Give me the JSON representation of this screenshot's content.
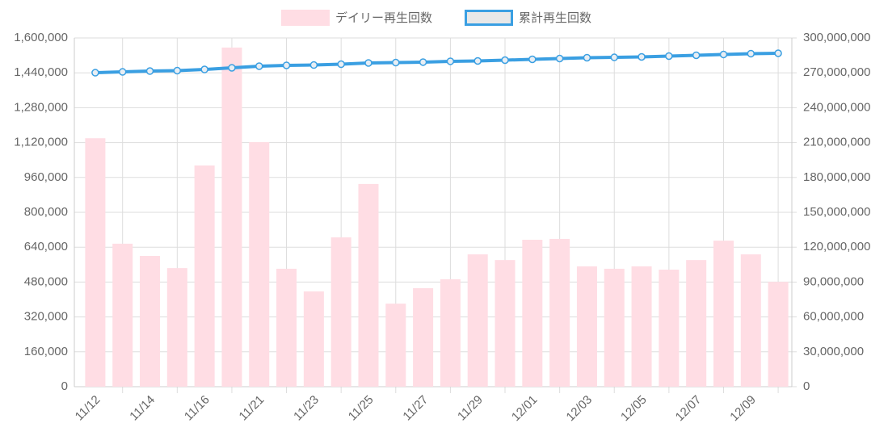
{
  "chart_data": {
    "type": "bar-line",
    "categories": [
      "11/12",
      null,
      "11/14",
      null,
      "11/16",
      null,
      "11/21",
      null,
      "11/23",
      null,
      "11/25",
      null,
      "11/27",
      null,
      "11/29",
      null,
      "12/01",
      null,
      "12/03",
      null,
      "12/05",
      null,
      "12/07",
      null,
      "12/09",
      null
    ],
    "series": [
      {
        "name": "デイリー再生回数",
        "color": "#ffdde4",
        "type": "bar",
        "axis": "y",
        "values": [
          1140000,
          656000,
          600000,
          544000,
          1015000,
          1556000,
          1122000,
          541000,
          437000,
          685000,
          930000,
          381000,
          452000,
          493000,
          607000,
          581000,
          674000,
          678000,
          552000,
          541000,
          552000,
          537000,
          581000,
          670000,
          607000,
          481000
        ]
      },
      {
        "name": "累計再生回数",
        "color": "#3a9fe2",
        "type": "line",
        "axis": "y2",
        "values": [
          270100000,
          270800000,
          271500000,
          271900000,
          272900000,
          274300000,
          275700000,
          276400000,
          276700000,
          277400000,
          278500000,
          278800000,
          279200000,
          279900000,
          280200000,
          280900000,
          281600000,
          282300000,
          283000000,
          283300000,
          283700000,
          284400000,
          285100000,
          285800000,
          286500000,
          286800000
        ]
      }
    ],
    "ylim": [
      0,
      1600000
    ],
    "yticks": [
      0,
      {
        "value": 160000,
        "label": "160,000"
      },
      {
        "value": 320000,
        "label": "320,000"
      },
      {
        "value": 480000,
        "label": "480,000"
      },
      {
        "value": 640000,
        "label": "640,000"
      },
      {
        "value": 800000,
        "label": "800,000"
      },
      {
        "value": 960000,
        "label": "960,000"
      },
      {
        "value": 1120000,
        "label": "1,120,000"
      },
      {
        "value": 1280000,
        "label": "1,280,000"
      },
      {
        "value": 1440000,
        "label": "1,440,000"
      },
      {
        "value": 1600000,
        "label": "1,600,000"
      }
    ],
    "y2lim": [
      0,
      300000000
    ],
    "y2ticks": [
      0,
      {
        "value": 30000000,
        "label": "30,000,000"
      },
      {
        "value": 60000000,
        "label": "60,000,000"
      },
      {
        "value": 90000000,
        "label": "90,000,000"
      },
      {
        "value": 120000000,
        "label": "120,000,000"
      },
      {
        "value": 150000000,
        "label": "150,000,000"
      },
      {
        "value": 180000000,
        "label": "180,000,000"
      },
      {
        "value": 210000000,
        "label": "210,000,000"
      },
      {
        "value": 240000000,
        "label": "240,000,000"
      },
      {
        "value": 270000000,
        "label": "270,000,000"
      },
      {
        "value": 300000000,
        "label": "300,000,000"
      }
    ],
    "grid": true,
    "legend": "top"
  }
}
